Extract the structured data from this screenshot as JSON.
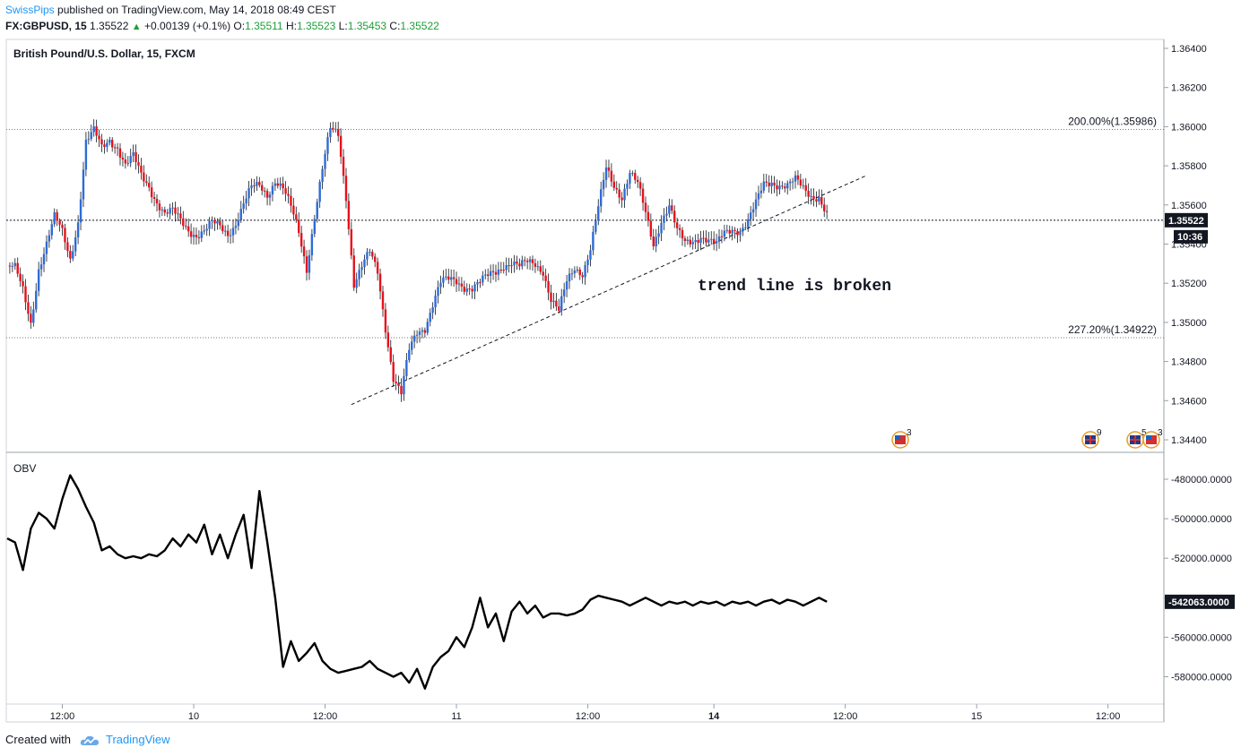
{
  "header": {
    "author": "SwissPips",
    "published_text": "published on TradingView.com, May 14, 2018 08:49 CEST",
    "symbol": "FX:GBPUSD, 15",
    "last": "1.35522",
    "change": "+0.00139 (+0.1%)",
    "o_label": "O:",
    "o": "1.35511",
    "h_label": "H:",
    "h": "1.35523",
    "l_label": "L:",
    "l": "1.35453",
    "c_label": "C:",
    "c": "1.35522"
  },
  "footer": {
    "created_with": "Created with",
    "brand": "TradingView"
  },
  "colors": {
    "up": "#2e6bd6",
    "down": "#e8101a",
    "obv": "#000000",
    "accent": "#2196f3"
  },
  "chart_data": [
    {
      "type": "candlestick",
      "title": "British Pound/U.S. Dollar, 15, FXCM",
      "y_ticks": [
        "1.36400",
        "1.36200",
        "1.36000",
        "1.35800",
        "1.35600",
        "1.35400",
        "1.35200",
        "1.35000",
        "1.34800",
        "1.34600",
        "1.34400"
      ],
      "ylim": [
        1.3436,
        1.3646
      ],
      "x_ticks": [
        "12:00",
        "10",
        "12:00",
        "11",
        "12:00",
        "14",
        "12:00",
        "15",
        "12:00"
      ],
      "last_price_label": "1.35522",
      "countdown_label": "10:36",
      "fib_levels": [
        {
          "label": "200.00%(1.35986)",
          "value": 1.35986
        },
        {
          "label": "227.20%(1.34922)",
          "value": 1.34922
        }
      ],
      "annotation": "trend line is broken",
      "trend_line": [
        {
          "x": "11 09:00",
          "y": 1.3458
        },
        {
          "x": "14 11:00",
          "y": 1.3575
        }
      ],
      "event_markers": [
        {
          "flag": "us",
          "count": "3"
        },
        {
          "flag": "uk",
          "count": "9"
        },
        {
          "flag": "uk",
          "count": "5"
        },
        {
          "flag": "us",
          "count": "3"
        }
      ],
      "close_path": [
        [
          0,
          1.3529
        ],
        [
          3,
          1.3527
        ],
        [
          6,
          1.3516
        ],
        [
          9,
          1.35
        ],
        [
          12,
          1.3528
        ],
        [
          15,
          1.354
        ],
        [
          18,
          1.3553
        ],
        [
          21,
          1.3546
        ],
        [
          24,
          1.3533
        ],
        [
          27,
          1.3552
        ],
        [
          30,
          1.3592
        ],
        [
          33,
          1.3597
        ],
        [
          36,
          1.3589
        ],
        [
          39,
          1.3594
        ],
        [
          42,
          1.359
        ],
        [
          45,
          1.358
        ],
        [
          48,
          1.3584
        ],
        [
          51,
          1.3575
        ],
        [
          54,
          1.357
        ],
        [
          57,
          1.3562
        ],
        [
          60,
          1.3555
        ],
        [
          63,
          1.3556
        ],
        [
          66,
          1.3552
        ],
        [
          69,
          1.3548
        ],
        [
          72,
          1.3545
        ],
        [
          75,
          1.3546
        ],
        [
          78,
          1.355
        ],
        [
          81,
          1.3549
        ],
        [
          84,
          1.3546
        ],
        [
          87,
          1.3551
        ],
        [
          90,
          1.356
        ],
        [
          93,
          1.3568
        ],
        [
          96,
          1.357
        ],
        [
          99,
          1.3566
        ],
        [
          102,
          1.3573
        ],
        [
          105,
          1.3568
        ],
        [
          108,
          1.3558
        ],
        [
          111,
          1.3546
        ],
        [
          114,
          1.3528
        ],
        [
          117,
          1.3555
        ],
        [
          120,
          1.3578
        ],
        [
          123,
          1.3598
        ],
        [
          126,
          1.3596
        ],
        [
          129,
          1.3565
        ],
        [
          132,
          1.352
        ],
        [
          135,
          1.3528
        ],
        [
          138,
          1.3535
        ],
        [
          141,
          1.3526
        ],
        [
          144,
          1.3498
        ],
        [
          147,
          1.3472
        ],
        [
          150,
          1.3463
        ],
        [
          153,
          1.3485
        ],
        [
          156,
          1.3495
        ],
        [
          159,
          1.3498
        ],
        [
          162,
          1.351
        ],
        [
          165,
          1.352
        ],
        [
          168,
          1.3521
        ],
        [
          171,
          1.3521
        ],
        [
          174,
          1.3519
        ],
        [
          177,
          1.3518
        ],
        [
          180,
          1.352
        ],
        [
          183,
          1.3523
        ],
        [
          186,
          1.3526
        ],
        [
          189,
          1.353
        ],
        [
          192,
          1.3531
        ],
        [
          195,
          1.3528
        ],
        [
          198,
          1.353
        ],
        [
          201,
          1.353
        ],
        [
          204,
          1.3527
        ],
        [
          207,
          1.3512
        ],
        [
          210,
          1.3505
        ],
        [
          213,
          1.352
        ],
        [
          216,
          1.3528
        ],
        [
          219,
          1.3526
        ],
        [
          222,
          1.3538
        ],
        [
          225,
          1.3558
        ],
        [
          228,
          1.3578
        ],
        [
          231,
          1.357
        ],
        [
          234,
          1.3565
        ],
        [
          237,
          1.3577
        ],
        [
          240,
          1.357
        ],
        [
          243,
          1.3555
        ],
        [
          246,
          1.354
        ],
        [
          249,
          1.3553
        ],
        [
          252,
          1.356
        ],
        [
          255,
          1.3546
        ],
        [
          258,
          1.354
        ],
        [
          261,
          1.3542
        ],
        [
          264,
          1.3545
        ],
        [
          267,
          1.3542
        ],
        [
          270,
          1.3539
        ],
        [
          273,
          1.3545
        ],
        [
          276,
          1.3548
        ],
        [
          279,
          1.3548
        ],
        [
          282,
          1.3552
        ],
        [
          285,
          1.356
        ],
        [
          288,
          1.357
        ],
        [
          291,
          1.3572
        ],
        [
          294,
          1.3571
        ],
        [
          297,
          1.357
        ],
        [
          300,
          1.3572
        ],
        [
          303,
          1.3568
        ],
        [
          306,
          1.3565
        ],
        [
          309,
          1.3565
        ],
        [
          312,
          1.3555
        ]
      ],
      "total_bars": 312
    },
    {
      "type": "line",
      "title": "OBV",
      "y_ticks": [
        "-480000.0000",
        "-500000.0000",
        "-520000.0000",
        "-540000.0000",
        "-560000.0000",
        "-580000.0000"
      ],
      "ylim": [
        -592000,
        -468000
      ],
      "last_value_label": "-542063.0000",
      "x": [
        0,
        3,
        6,
        9,
        12,
        15,
        18,
        21,
        24,
        27,
        30,
        33,
        36,
        39,
        42,
        45,
        48,
        51,
        54,
        57,
        60,
        63,
        66,
        69,
        72,
        75,
        78,
        81,
        84,
        87,
        90,
        93,
        96,
        99,
        102,
        105,
        108,
        111,
        114,
        117,
        120,
        123,
        126,
        129,
        132,
        135,
        138,
        141,
        144,
        147,
        150,
        153,
        156,
        159,
        162,
        165,
        168,
        171,
        174,
        177,
        180,
        183,
        186,
        189,
        192,
        195,
        198,
        201,
        204,
        207,
        210,
        213,
        216,
        219,
        222,
        225,
        228,
        231,
        234,
        237,
        240,
        243,
        246,
        249,
        252,
        255,
        258,
        261,
        264,
        267,
        270,
        273,
        276,
        279,
        282,
        285,
        288,
        291,
        294,
        297,
        300,
        303,
        306,
        309,
        312
      ],
      "values": [
        -510000,
        -512000,
        -526000,
        -505000,
        -497000,
        -500000,
        -505000,
        -490000,
        -478000,
        -485000,
        -494000,
        -502000,
        -516000,
        -514000,
        -518000,
        -520000,
        -519000,
        -520000,
        -518000,
        -519000,
        -516000,
        -510000,
        -514000,
        -508000,
        -512000,
        -503000,
        -518000,
        -508000,
        -520000,
        -508000,
        -498000,
        -525000,
        -486000,
        -512000,
        -540000,
        -575000,
        -562000,
        -572000,
        -568000,
        -563000,
        -572000,
        -576000,
        -578000,
        -577000,
        -576000,
        -575000,
        -572000,
        -576000,
        -578000,
        -580000,
        -578000,
        -583000,
        -576000,
        -586000,
        -575000,
        -570000,
        -567000,
        -560000,
        -565000,
        -555000,
        -540000,
        -555000,
        -548000,
        -562000,
        -547000,
        -542000,
        -548000,
        -544000,
        -550000,
        -548000,
        -548000,
        -549000,
        -548000,
        -546000,
        -541000,
        -539000,
        -540000,
        -541000,
        -542000,
        -544000,
        -542000,
        -540000,
        -542000,
        -544000,
        -542000,
        -543000,
        -542000,
        -544000,
        -542000,
        -543000,
        -542000,
        -544000,
        -542000,
        -543000,
        -542000,
        -544000,
        -542000,
        -541000,
        -543000,
        -541000,
        -542000,
        -544000,
        -542000,
        -540000,
        -542063
      ]
    }
  ]
}
